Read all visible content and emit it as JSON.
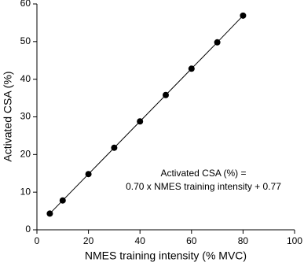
{
  "chart_data": {
    "type": "scatter",
    "xlabel": "NMES training intensity (% MVC)",
    "ylabel": "Activated CSA (%)",
    "annotation": [
      "Activated CSA (%) =",
      "0.70 x NMES training intensity + 0.77"
    ],
    "x": [
      5,
      10,
      20,
      30,
      40,
      50,
      60,
      70,
      80
    ],
    "series": [
      {
        "color": "#000000",
        "values": [
          4.3,
          7.8,
          14.8,
          21.8,
          28.8,
          35.8,
          42.8,
          49.8,
          56.9
        ]
      }
    ],
    "trendline": true,
    "xlim": [
      0,
      100
    ],
    "xticks": [
      0,
      20,
      40,
      60,
      80,
      100
    ],
    "ylim": [
      0,
      60
    ],
    "yticks": [
      0,
      10,
      20,
      30,
      40,
      50,
      60
    ]
  }
}
